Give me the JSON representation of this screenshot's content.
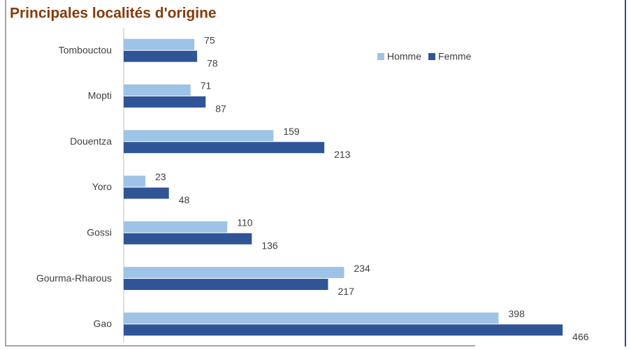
{
  "chart_data": {
    "type": "hbar",
    "title": "Principales localités d'origine",
    "categories": [
      "Tombouctou",
      "Mopti",
      "Douentza",
      "Yoro",
      "Gossi",
      "Gourma-Rharous",
      "Gao"
    ],
    "series": [
      {
        "name": "Homme",
        "color": "#9dc3e6",
        "values": [
          75,
          71,
          159,
          23,
          110,
          234,
          398
        ]
      },
      {
        "name": "Femme",
        "color": "#2f5597",
        "values": [
          78,
          87,
          213,
          48,
          136,
          217,
          466
        ]
      }
    ],
    "xlim": [
      0,
      500
    ],
    "legend": "top-right"
  }
}
